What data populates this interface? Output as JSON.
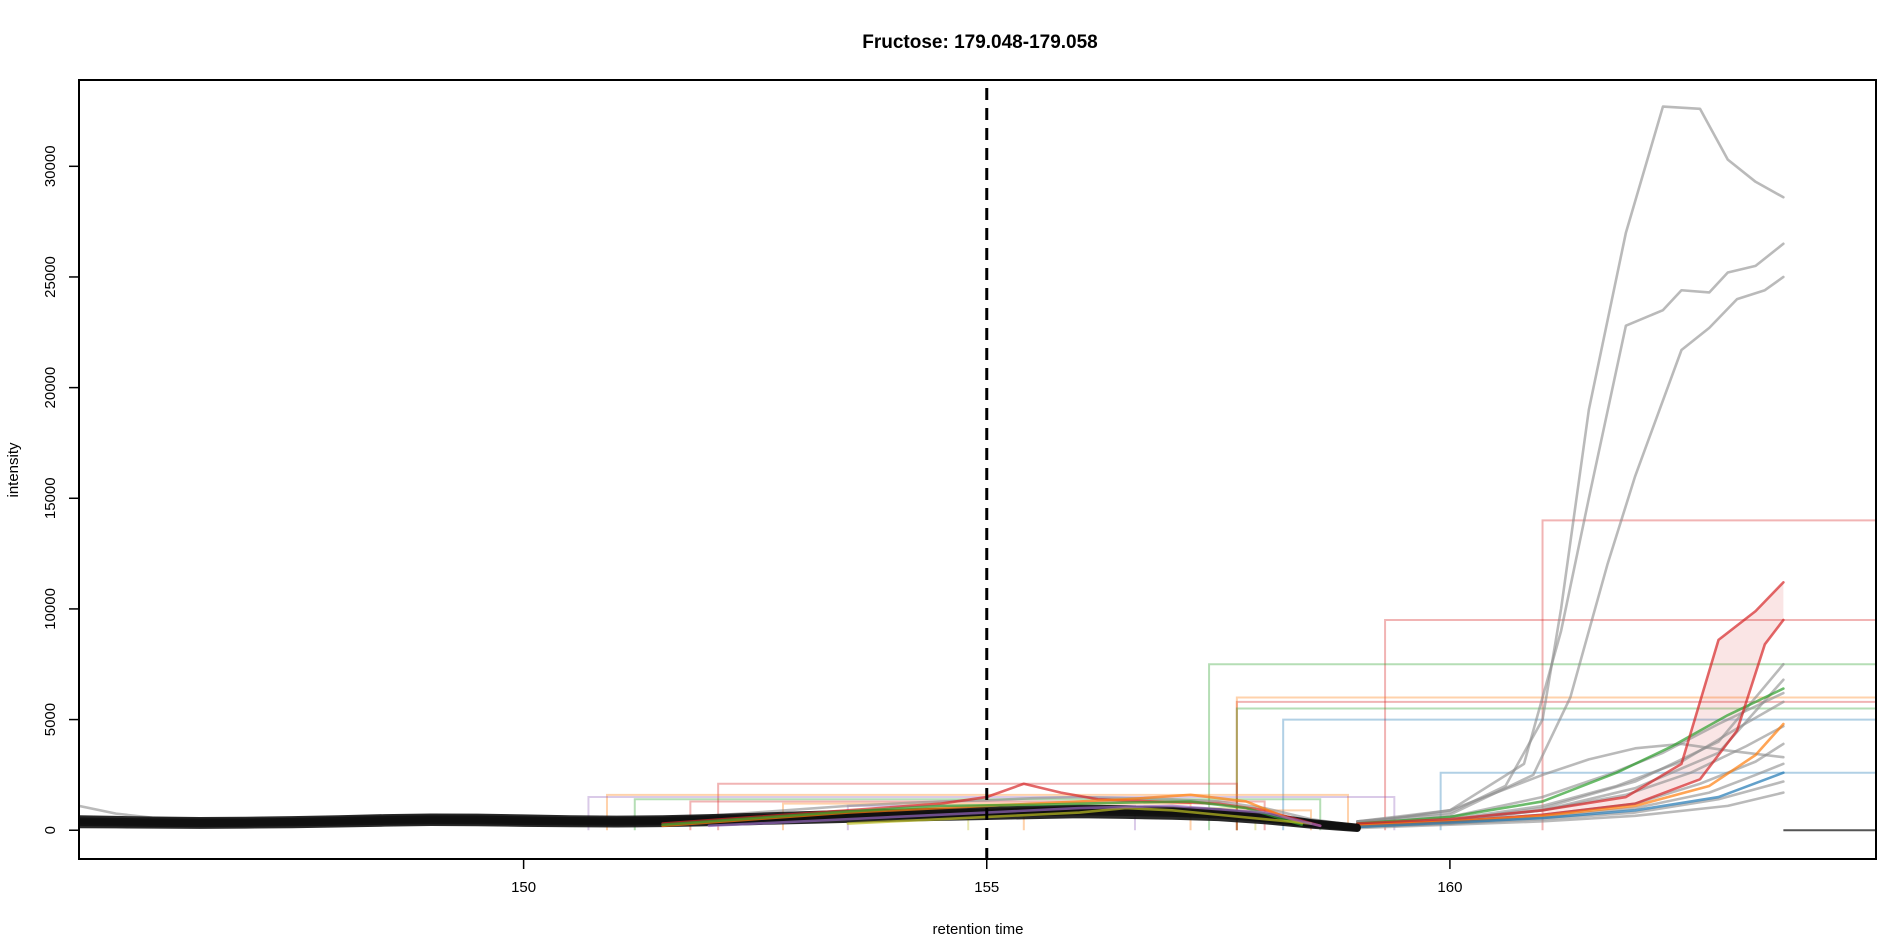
{
  "chart_data": {
    "type": "line",
    "title": "Fructose: 179.048-179.058",
    "xlabel": "retention time",
    "ylabel": "intensity",
    "xlim": [
      145.2,
      164.6
    ],
    "ylim": [
      -1300,
      33900
    ],
    "x_ticks": [
      150,
      155,
      160
    ],
    "y_ticks": [
      0,
      5000,
      10000,
      15000,
      20000,
      25000,
      30000
    ],
    "reference_line": {
      "x": 155,
      "style": "dashed",
      "color": "#000000"
    },
    "grid": false,
    "legend": "none",
    "colors": {
      "grey_trace": "#8c8c8c",
      "black_trace": "#111111",
      "red": "#d62728",
      "green": "#2ca02c",
      "blue": "#1f77b4",
      "orange": "#ff7f0e",
      "purple": "#9467bd",
      "olive": "#bcbd22"
    },
    "series": [
      {
        "color": "grey_trace",
        "x": [
          159.0,
          160.0,
          160.6,
          161.0,
          161.2,
          161.5,
          161.9,
          162.3,
          162.7,
          163.0,
          163.3,
          163.6
        ],
        "y": [
          400,
          800,
          2000,
          5000,
          10000,
          19000,
          27000,
          32700,
          32600,
          30300,
          29300,
          28600
        ]
      },
      {
        "color": "grey_trace",
        "x": [
          159.0,
          160.0,
          160.8,
          161.2,
          161.5,
          161.9,
          162.3,
          162.5,
          162.8,
          163.0,
          163.3,
          163.6
        ],
        "y": [
          400,
          900,
          3000,
          9000,
          15000,
          22800,
          23500,
          24400,
          24300,
          25200,
          25500,
          26500
        ]
      },
      {
        "color": "grey_trace",
        "x": [
          159.0,
          160.0,
          160.9,
          161.3,
          161.7,
          162.0,
          162.5,
          162.8,
          163.1,
          163.4,
          163.6
        ],
        "y": [
          400,
          700,
          2500,
          6000,
          12000,
          16000,
          21700,
          22700,
          24000,
          24400,
          25000
        ]
      },
      {
        "color": "grey_trace",
        "x": [
          159.0,
          160.0,
          161.0,
          161.5,
          162.0,
          162.5,
          163.0,
          163.6
        ],
        "y": [
          300,
          900,
          2500,
          3200,
          3700,
          3900,
          3600,
          3300
        ]
      },
      {
        "color": "grey_trace",
        "x": [
          159.0,
          160.0,
          161.0,
          161.7,
          162.3,
          162.9,
          163.6
        ],
        "y": [
          300,
          600,
          1500,
          2500,
          3500,
          4800,
          6200
        ]
      },
      {
        "color": "grey_trace",
        "x": [
          159.0,
          160.0,
          161.0,
          161.8,
          162.5,
          163.1,
          163.6
        ],
        "y": [
          250,
          500,
          1100,
          2000,
          3100,
          4600,
          5800
        ]
      },
      {
        "color": "grey_trace",
        "x": [
          159.0,
          160.0,
          161.0,
          161.9,
          162.6,
          163.2,
          163.6
        ],
        "y": [
          200,
          450,
          900,
          1600,
          2600,
          3800,
          4700
        ]
      },
      {
        "color": "grey_trace",
        "x": [
          159.0,
          160.0,
          161.0,
          162.0,
          162.7,
          163.3,
          163.6
        ],
        "y": [
          200,
          400,
          700,
          1200,
          2100,
          3100,
          3900
        ]
      },
      {
        "color": "grey_trace",
        "x": [
          159.0,
          160.0,
          161.0,
          162.0,
          162.8,
          163.3,
          163.6
        ],
        "y": [
          150,
          300,
          600,
          1000,
          1700,
          2500,
          3000
        ]
      },
      {
        "color": "grey_trace",
        "x": [
          159.0,
          160.0,
          161.0,
          162.0,
          162.9,
          163.6
        ],
        "y": [
          150,
          300,
          500,
          800,
          1400,
          2200
        ]
      },
      {
        "color": "grey_trace",
        "x": [
          159.0,
          160.0,
          161.0,
          162.0,
          163.0,
          163.6
        ],
        "y": [
          100,
          250,
          400,
          650,
          1100,
          1700
        ]
      },
      {
        "color": "grey_trace",
        "x": [
          159.0,
          160.0,
          161.0,
          162.0,
          162.9,
          163.6
        ],
        "y": [
          250,
          450,
          1000,
          2200,
          4000,
          7500
        ]
      },
      {
        "color": "grey_trace",
        "x": [
          159.0,
          160.0,
          161.0,
          162.0,
          162.9,
          163.6
        ],
        "y": [
          200,
          400,
          900,
          1900,
          3500,
          6800
        ]
      },
      {
        "color": "green",
        "x": [
          159.0,
          160.0,
          161.0,
          161.8,
          162.4,
          163.0,
          163.6
        ],
        "y": [
          300,
          600,
          1300,
          2600,
          3800,
          5200,
          6400
        ]
      },
      {
        "color": "red",
        "x": [
          159.0,
          160.0,
          161.0,
          161.9,
          162.5,
          162.9,
          163.3,
          163.6
        ],
        "y": [
          300,
          500,
          900,
          1500,
          3000,
          8600,
          9900,
          11200
        ]
      },
      {
        "color": "red",
        "x": [
          159.0,
          160.0,
          161.0,
          162.0,
          162.7,
          163.1,
          163.4,
          163.6
        ],
        "y": [
          250,
          400,
          700,
          1200,
          2300,
          4500,
          8400,
          9500
        ]
      },
      {
        "color": "orange",
        "x": [
          159.0,
          160.0,
          161.0,
          162.0,
          162.8,
          163.3,
          163.6
        ],
        "y": [
          200,
          400,
          650,
          1100,
          2000,
          3400,
          4800
        ]
      },
      {
        "color": "blue",
        "x": [
          159.0,
          160.0,
          161.0,
          162.0,
          162.9,
          163.6
        ],
        "y": [
          150,
          350,
          550,
          900,
          1500,
          2600
        ]
      },
      {
        "color": "grey_trace",
        "x": [
          145.2,
          145.6,
          146.0,
          146.5,
          147.0,
          147.5,
          148.0,
          148.5,
          149.0,
          149.5,
          150.0,
          150.5,
          151.0,
          151.5,
          152.0,
          152.5,
          153.0,
          153.5,
          154.0,
          154.5,
          155.0,
          155.5,
          156.0,
          156.5,
          157.0,
          157.5,
          158.0,
          158.5,
          159.0
        ],
        "y": [
          1100,
          750,
          560,
          500,
          480,
          500,
          560,
          620,
          660,
          640,
          580,
          540,
          520,
          560,
          650,
          800,
          950,
          1100,
          1200,
          1300,
          1350,
          1450,
          1500,
          1450,
          1400,
          1300,
          1000,
          500,
          200
        ]
      },
      {
        "color": "black_trace",
        "x": [
          145.2,
          145.6,
          146.0,
          146.5,
          147.0,
          147.5,
          148.0,
          148.5,
          149.0,
          149.5,
          150.0,
          150.5,
          151.0,
          151.5,
          152.0,
          152.5,
          153.0,
          153.5,
          154.0,
          154.5,
          155.0,
          155.5,
          156.0,
          156.5,
          157.0,
          157.5,
          158.0,
          158.5,
          159.0
        ],
        "y": [
          420,
          400,
          380,
          360,
          370,
          400,
          440,
          480,
          510,
          500,
          470,
          440,
          430,
          450,
          500,
          560,
          620,
          680,
          730,
          780,
          820,
          880,
          930,
          900,
          850,
          780,
          600,
          320,
          120
        ]
      },
      {
        "color": "black_trace",
        "x": [
          145.2,
          145.6,
          146.0,
          146.5,
          147.0,
          147.5,
          148.0,
          148.5,
          149.0,
          149.5,
          150.0,
          150.5,
          151.0,
          151.5,
          152.0,
          152.5,
          153.0,
          153.5,
          154.0,
          154.5,
          155.0,
          155.5,
          156.0,
          156.5,
          157.0,
          157.5,
          158.0,
          158.5,
          159.0
        ],
        "y": [
          350,
          330,
          310,
          300,
          310,
          330,
          360,
          400,
          430,
          420,
          390,
          370,
          360,
          380,
          420,
          480,
          540,
          600,
          650,
          700,
          740,
          790,
          830,
          800,
          760,
          690,
          520,
          280,
          100
        ]
      },
      {
        "color": "black_trace",
        "x": [
          145.2,
          145.6,
          146.0,
          146.5,
          147.0,
          147.5,
          148.0,
          148.5,
          149.0,
          149.5,
          150.0,
          150.5,
          151.0,
          151.5,
          152.0,
          152.5,
          153.0,
          153.5,
          154.0,
          154.5,
          155.0,
          155.5,
          156.0,
          156.5,
          157.0,
          157.5,
          158.0,
          158.5,
          159.0
        ],
        "y": [
          520,
          490,
          460,
          440,
          450,
          480,
          520,
          570,
          600,
          590,
          560,
          520,
          500,
          520,
          570,
          630,
          700,
          760,
          810,
          860,
          900,
          960,
          1000,
          970,
          920,
          840,
          650,
          350,
          140
        ]
      },
      {
        "color": "black_trace",
        "x": [
          145.2,
          145.6,
          146.0,
          146.5,
          147.0,
          147.5,
          148.0,
          148.5,
          149.0,
          149.5,
          150.0,
          150.5,
          151.0,
          151.5,
          152.0,
          152.5,
          153.0,
          153.5,
          154.0,
          154.5,
          155.0,
          155.5,
          156.0,
          156.5,
          157.0,
          157.5,
          158.0,
          158.5,
          159.0
        ],
        "y": [
          250,
          240,
          230,
          220,
          230,
          250,
          280,
          320,
          350,
          340,
          310,
          290,
          280,
          300,
          340,
          390,
          440,
          490,
          540,
          580,
          620,
          660,
          700,
          670,
          630,
          570,
          430,
          230,
          80
        ]
      },
      {
        "color": "red",
        "x": [
          151.5,
          152.5,
          153.5,
          154.5,
          155.0,
          155.4,
          155.8,
          156.2,
          156.8,
          157.5,
          158.0,
          158.6
        ],
        "y": [
          300,
          600,
          900,
          1200,
          1500,
          2100,
          1700,
          1400,
          1300,
          1200,
          900,
          200
        ]
      },
      {
        "color": "orange",
        "x": [
          151.5,
          152.5,
          153.5,
          154.5,
          155.5,
          156.5,
          157.2,
          157.8,
          158.4
        ],
        "y": [
          200,
          500,
          800,
          1000,
          1200,
          1400,
          1600,
          1300,
          300
        ]
      },
      {
        "color": "green",
        "x": [
          151.5,
          152.5,
          153.5,
          154.5,
          155.5,
          156.5,
          157.2,
          157.8,
          158.4
        ],
        "y": [
          250,
          550,
          850,
          1100,
          1150,
          1250,
          1300,
          1000,
          250
        ]
      },
      {
        "color": "olive",
        "x": [
          153.5,
          154.5,
          155.0,
          155.5,
          156.0,
          156.5,
          157.0,
          157.5,
          158.0,
          158.5
        ],
        "y": [
          300,
          500,
          600,
          700,
          800,
          1000,
          900,
          700,
          500,
          300
        ]
      },
      {
        "color": "purple",
        "x": [
          152.0,
          153.0,
          154.0,
          155.0,
          156.0,
          157.0,
          158.0,
          158.6
        ],
        "y": [
          200,
          400,
          600,
          800,
          1000,
          1100,
          800,
          200
        ]
      }
    ],
    "peak_boxes": [
      {
        "color": "red",
        "rt_min": 161.0,
        "rt_max": 164.6,
        "max_intensity": 14000
      },
      {
        "color": "red",
        "rt_min": 159.3,
        "rt_max": 164.6,
        "max_intensity": 9500
      },
      {
        "color": "green",
        "rt_min": 157.4,
        "rt_max": 164.6,
        "max_intensity": 7500
      },
      {
        "color": "red",
        "rt_min": 157.7,
        "rt_max": 164.6,
        "max_intensity": 5800
      },
      {
        "color": "orange",
        "rt_min": 157.7,
        "rt_max": 164.6,
        "max_intensity": 6000
      },
      {
        "color": "green",
        "rt_min": 157.7,
        "rt_max": 164.6,
        "max_intensity": 5500
      },
      {
        "color": "blue",
        "rt_min": 158.2,
        "rt_max": 164.6,
        "max_intensity": 5000
      },
      {
        "color": "blue",
        "rt_min": 159.9,
        "rt_max": 164.6,
        "max_intensity": 2600
      },
      {
        "color": "red",
        "rt_min": 152.1,
        "rt_max": 157.7,
        "max_intensity": 2100
      },
      {
        "color": "orange",
        "rt_min": 150.9,
        "rt_max": 158.9,
        "max_intensity": 1600
      },
      {
        "color": "purple",
        "rt_min": 150.7,
        "rt_max": 159.4,
        "max_intensity": 1500
      },
      {
        "color": "green",
        "rt_min": 151.2,
        "rt_max": 158.6,
        "max_intensity": 1400
      },
      {
        "color": "red",
        "rt_min": 151.8,
        "rt_max": 158.0,
        "max_intensity": 1300
      },
      {
        "color": "orange",
        "rt_min": 152.8,
        "rt_max": 157.2,
        "max_intensity": 1200
      },
      {
        "color": "purple",
        "rt_min": 153.5,
        "rt_max": 156.6,
        "max_intensity": 1100
      },
      {
        "color": "olive",
        "rt_min": 154.8,
        "rt_max": 157.9,
        "max_intensity": 1000
      },
      {
        "color": "orange",
        "rt_min": 155.4,
        "rt_max": 158.5,
        "max_intensity": 900
      }
    ],
    "filled_peak": {
      "color": "red",
      "x": [
        161.0,
        161.9,
        162.5,
        162.9,
        163.3,
        163.6,
        163.6,
        163.4,
        163.1,
        162.7,
        162.0,
        161.0
      ],
      "y": [
        900,
        1500,
        3000,
        8600,
        9900,
        11200,
        9500,
        8400,
        4500,
        2300,
        1200,
        700
      ]
    }
  }
}
